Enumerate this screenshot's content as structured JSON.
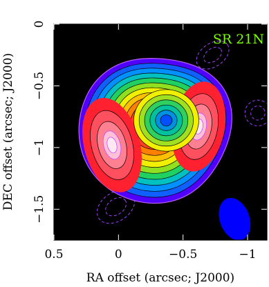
{
  "chart_data": {
    "type": "heatmap",
    "source_label": "SR 21N",
    "xlabel": "RA offset (arcsec; J2000)",
    "ylabel": "DEC offset (arcsec; J2000)",
    "xlim": [
      0.5,
      -1.15
    ],
    "ylim": [
      -1.75,
      0.0
    ],
    "x_ticks": [
      0.5,
      0,
      -0.5,
      -1
    ],
    "x_tick_labels": [
      "0.5",
      "0",
      "−0.5",
      "−1"
    ],
    "y_ticks": [
      0,
      -0.5,
      -1,
      -1.5
    ],
    "y_tick_labels": [
      "0",
      "−0.5",
      "−1",
      "−1.5"
    ],
    "colormap": [
      "#ffe0f0",
      "#ff3040",
      "#ff6010",
      "#ffe000",
      "#40f030",
      "#00b0b0",
      "#0050ff",
      "#8000ff",
      "#000000"
    ],
    "ring": {
      "center": [
        -0.28,
        -0.85
      ],
      "outer_radius": 0.58,
      "cavity_center": [
        -0.37,
        -0.78
      ],
      "cavity_radius": 0.12
    },
    "peaks": [
      {
        "x": 0.05,
        "y": -0.98,
        "level": 1.0
      },
      {
        "x": -0.62,
        "y": -0.83,
        "level": 0.85
      }
    ],
    "contour_levels": 10,
    "negative_contours": [
      {
        "x": 0.02,
        "y": -1.48,
        "rx": 0.16,
        "ry": 0.11
      },
      {
        "x": -0.73,
        "y": -0.25,
        "rx": 0.14,
        "ry": 0.09
      },
      {
        "x": -1.08,
        "y": -0.72,
        "rx": 0.1,
        "ry": 0.1
      }
    ],
    "beam": {
      "x": -0.9,
      "y": -1.58,
      "major": 0.34,
      "minor": 0.23,
      "pa_deg": 20,
      "color": "#0000ff"
    }
  }
}
